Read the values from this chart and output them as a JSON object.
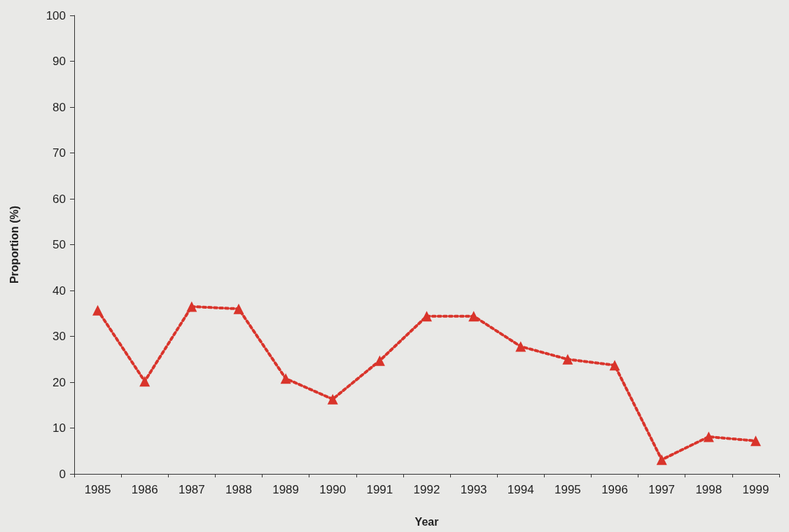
{
  "chart_data": {
    "type": "line",
    "xlabel": "Year",
    "ylabel": "Proportion (%)",
    "categories": [
      "1985",
      "1986",
      "1987",
      "1988",
      "1989",
      "1990",
      "1991",
      "1992",
      "1993",
      "1994",
      "1995",
      "1996",
      "1997",
      "1998",
      "1999"
    ],
    "series": [
      {
        "color": "#d9342b",
        "values": [
          35.7,
          20.2,
          36.5,
          36.0,
          20.8,
          16.3,
          24.7,
          34.4,
          34.4,
          27.8,
          25.0,
          23.7,
          3.1,
          8.1,
          7.2
        ]
      }
    ],
    "ylim": [
      0,
      100
    ],
    "yticks": [
      0,
      10,
      20,
      30,
      40,
      50,
      60,
      70,
      80,
      90,
      100
    ],
    "grid": false,
    "marker": "triangle",
    "line_style": "dotted"
  }
}
